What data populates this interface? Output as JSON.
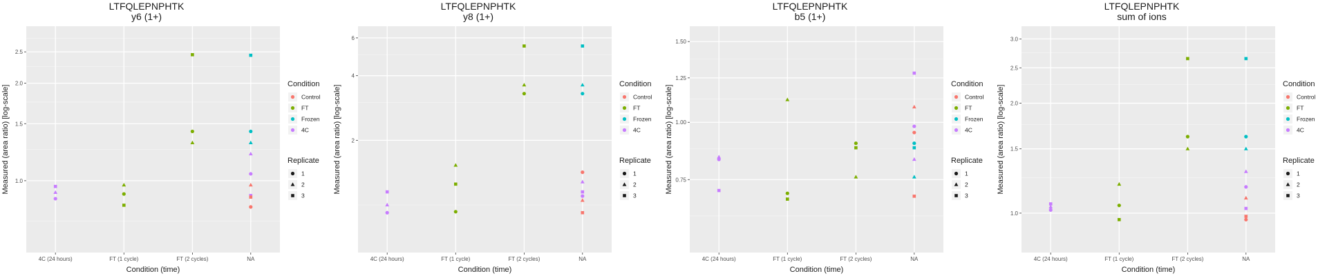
{
  "legend": {
    "condition_title": "Condition",
    "condition_entries": [
      {
        "label": "Control",
        "color": "#F8766D"
      },
      {
        "label": "FT",
        "color": "#7CAE00"
      },
      {
        "label": "Frozen",
        "color": "#00BFC4"
      },
      {
        "label": "4C",
        "color": "#C77CFF"
      }
    ],
    "replicate_title": "Replicate",
    "replicate_entries": [
      {
        "label": "1",
        "shape": "circle"
      },
      {
        "label": "2",
        "shape": "triangle"
      },
      {
        "label": "3",
        "shape": "square"
      }
    ]
  },
  "chart_data": [
    {
      "type": "scatter",
      "title": "LTFQLEPNPHTK",
      "subtitle": "y6 (1+)",
      "xlabel": "Condition (time)",
      "ylabel": "Measured (area ratio) [log-scale]",
      "y_scale": "log",
      "ylim": [
        0.6,
        3.0
      ],
      "grid": true,
      "legend_position": "right",
      "categories": [
        "4C (24 hours)",
        "FT (1 cycle)",
        "FT (2 cycles)",
        "NA"
      ],
      "y_ticks": [
        1.0,
        1.5,
        2.0,
        2.5
      ],
      "y_tick_labels": [
        "1.0",
        "1.5",
        "2.0",
        "2.5"
      ],
      "points": [
        {
          "x": "4C (24 hours)",
          "y": 0.96,
          "condition": "4C",
          "replicate": "3"
        },
        {
          "x": "4C (24 hours)",
          "y": 0.92,
          "condition": "4C",
          "replicate": "2"
        },
        {
          "x": "4C (24 hours)",
          "y": 0.88,
          "condition": "4C",
          "replicate": "1"
        },
        {
          "x": "FT (1 cycle)",
          "y": 0.97,
          "condition": "FT",
          "replicate": "2"
        },
        {
          "x": "FT (1 cycle)",
          "y": 0.91,
          "condition": "FT",
          "replicate": "1"
        },
        {
          "x": "FT (1 cycle)",
          "y": 0.84,
          "condition": "FT",
          "replicate": "3"
        },
        {
          "x": "FT (2 cycles)",
          "y": 2.45,
          "condition": "FT",
          "replicate": "3"
        },
        {
          "x": "FT (2 cycles)",
          "y": 1.42,
          "condition": "FT",
          "replicate": "1"
        },
        {
          "x": "FT (2 cycles)",
          "y": 1.31,
          "condition": "FT",
          "replicate": "2"
        },
        {
          "x": "NA",
          "y": 2.44,
          "condition": "Frozen",
          "replicate": "3"
        },
        {
          "x": "NA",
          "y": 1.42,
          "condition": "Frozen",
          "replicate": "1"
        },
        {
          "x": "NA",
          "y": 1.31,
          "condition": "Frozen",
          "replicate": "2"
        },
        {
          "x": "NA",
          "y": 1.21,
          "condition": "4C",
          "replicate": "2"
        },
        {
          "x": "NA",
          "y": 1.05,
          "condition": "4C",
          "replicate": "1"
        },
        {
          "x": "NA",
          "y": 0.97,
          "condition": "Control",
          "replicate": "2"
        },
        {
          "x": "NA",
          "y": 0.9,
          "condition": "4C",
          "replicate": "3"
        },
        {
          "x": "NA",
          "y": 0.89,
          "condition": "Control",
          "replicate": "3"
        },
        {
          "x": "NA",
          "y": 0.83,
          "condition": "Control",
          "replicate": "1"
        }
      ]
    },
    {
      "type": "scatter",
      "title": "LTFQLEPNPHTK",
      "subtitle": "y8 (1+)",
      "xlabel": "Condition (time)",
      "ylabel": "Measured (area ratio) [log-scale]",
      "y_scale": "log",
      "ylim": [
        0.6,
        6.8
      ],
      "grid": true,
      "legend_position": "right",
      "categories": [
        "4C (24 hours)",
        "FT (1 cycle)",
        "FT (2 cycles)",
        "NA"
      ],
      "y_ticks": [
        2,
        4,
        6
      ],
      "y_tick_labels": [
        "2",
        "4",
        "6"
      ],
      "points": [
        {
          "x": "4C (24 hours)",
          "y": 1.15,
          "condition": "4C",
          "replicate": "3"
        },
        {
          "x": "4C (24 hours)",
          "y": 1.0,
          "condition": "4C",
          "replicate": "2"
        },
        {
          "x": "4C (24 hours)",
          "y": 0.92,
          "condition": "4C",
          "replicate": "1"
        },
        {
          "x": "FT (1 cycle)",
          "y": 1.53,
          "condition": "FT",
          "replicate": "2"
        },
        {
          "x": "FT (1 cycle)",
          "y": 1.25,
          "condition": "FT",
          "replicate": "3"
        },
        {
          "x": "FT (1 cycle)",
          "y": 0.93,
          "condition": "FT",
          "replicate": "1"
        },
        {
          "x": "FT (2 cycles)",
          "y": 5.5,
          "condition": "FT",
          "replicate": "3"
        },
        {
          "x": "FT (2 cycles)",
          "y": 3.62,
          "condition": "FT",
          "replicate": "2"
        },
        {
          "x": "FT (2 cycles)",
          "y": 3.3,
          "condition": "FT",
          "replicate": "1"
        },
        {
          "x": "NA",
          "y": 5.5,
          "condition": "Frozen",
          "replicate": "3"
        },
        {
          "x": "NA",
          "y": 3.62,
          "condition": "Frozen",
          "replicate": "2"
        },
        {
          "x": "NA",
          "y": 3.3,
          "condition": "Frozen",
          "replicate": "1"
        },
        {
          "x": "NA",
          "y": 1.42,
          "condition": "Control",
          "replicate": "1"
        },
        {
          "x": "NA",
          "y": 1.28,
          "condition": "4C",
          "replicate": "2"
        },
        {
          "x": "NA",
          "y": 1.15,
          "condition": "4C",
          "replicate": "3"
        },
        {
          "x": "NA",
          "y": 1.1,
          "condition": "4C",
          "replicate": "1"
        },
        {
          "x": "NA",
          "y": 1.05,
          "condition": "Control",
          "replicate": "2"
        },
        {
          "x": "NA",
          "y": 0.92,
          "condition": "Control",
          "replicate": "3"
        }
      ]
    },
    {
      "type": "scatter",
      "title": "LTFQLEPNPHTK",
      "subtitle": "b5 (1+)",
      "xlabel": "Condition (time)",
      "ylabel": "Measured (area ratio) [log-scale]",
      "y_scale": "log",
      "ylim": [
        0.52,
        1.62
      ],
      "grid": true,
      "legend_position": "right",
      "categories": [
        "4C (24 hours)",
        "FT (1 cycle)",
        "FT (2 cycles)",
        "NA"
      ],
      "y_ticks": [
        0.75,
        1.0,
        1.25,
        1.5
      ],
      "y_tick_labels": [
        "0.75",
        "1.00",
        "1.25",
        "1.50"
      ],
      "points": [
        {
          "x": "4C (24 hours)",
          "y": 0.84,
          "condition": "4C",
          "replicate": "2"
        },
        {
          "x": "4C (24 hours)",
          "y": 0.83,
          "condition": "4C",
          "replicate": "1"
        },
        {
          "x": "4C (24 hours)",
          "y": 0.71,
          "condition": "4C",
          "replicate": "3"
        },
        {
          "x": "FT (1 cycle)",
          "y": 1.12,
          "condition": "FT",
          "replicate": "2"
        },
        {
          "x": "FT (1 cycle)",
          "y": 0.7,
          "condition": "FT",
          "replicate": "1"
        },
        {
          "x": "FT (1 cycle)",
          "y": 0.68,
          "condition": "FT",
          "replicate": "3"
        },
        {
          "x": "FT (2 cycles)",
          "y": 0.9,
          "condition": "FT",
          "replicate": "1"
        },
        {
          "x": "FT (2 cycles)",
          "y": 0.88,
          "condition": "FT",
          "replicate": "3"
        },
        {
          "x": "FT (2 cycles)",
          "y": 0.76,
          "condition": "FT",
          "replicate": "2"
        },
        {
          "x": "NA",
          "y": 1.28,
          "condition": "4C",
          "replicate": "3"
        },
        {
          "x": "NA",
          "y": 1.08,
          "condition": "Control",
          "replicate": "2"
        },
        {
          "x": "NA",
          "y": 0.98,
          "condition": "4C",
          "replicate": "1"
        },
        {
          "x": "NA",
          "y": 0.95,
          "condition": "Control",
          "replicate": "1"
        },
        {
          "x": "NA",
          "y": 0.9,
          "condition": "Frozen",
          "replicate": "1"
        },
        {
          "x": "NA",
          "y": 0.88,
          "condition": "Frozen",
          "replicate": "3"
        },
        {
          "x": "NA",
          "y": 0.83,
          "condition": "4C",
          "replicate": "2"
        },
        {
          "x": "NA",
          "y": 0.76,
          "condition": "Frozen",
          "replicate": "2"
        },
        {
          "x": "NA",
          "y": 0.69,
          "condition": "Control",
          "replicate": "3"
        }
      ]
    },
    {
      "type": "scatter",
      "title": "LTFQLEPNPHTK",
      "subtitle": "sum of ions",
      "xlabel": "Condition (time)",
      "ylabel": "Measured (area ratio) [log-scale]",
      "y_scale": "log",
      "ylim": [
        0.78,
        3.25
      ],
      "grid": true,
      "legend_position": "right",
      "categories": [
        "4C (24 hours)",
        "FT (1 cycle)",
        "FT (2 cycles)",
        "NA"
      ],
      "y_ticks": [
        1.0,
        1.5,
        2.0,
        2.5,
        3.0
      ],
      "y_tick_labels": [
        "1.0",
        "1.5",
        "2.0",
        "2.5",
        "3.0"
      ],
      "points": [
        {
          "x": "4C (24 hours)",
          "y": 1.06,
          "condition": "4C",
          "replicate": "3"
        },
        {
          "x": "4C (24 hours)",
          "y": 1.04,
          "condition": "4C",
          "replicate": "2"
        },
        {
          "x": "4C (24 hours)",
          "y": 1.02,
          "condition": "4C",
          "replicate": "1"
        },
        {
          "x": "FT (1 cycle)",
          "y": 1.2,
          "condition": "FT",
          "replicate": "2"
        },
        {
          "x": "FT (1 cycle)",
          "y": 1.05,
          "condition": "FT",
          "replicate": "1"
        },
        {
          "x": "FT (1 cycle)",
          "y": 0.96,
          "condition": "FT",
          "replicate": "3"
        },
        {
          "x": "FT (2 cycles)",
          "y": 2.65,
          "condition": "FT",
          "replicate": "3"
        },
        {
          "x": "FT (2 cycles)",
          "y": 1.62,
          "condition": "FT",
          "replicate": "1"
        },
        {
          "x": "FT (2 cycles)",
          "y": 1.5,
          "condition": "FT",
          "replicate": "2"
        },
        {
          "x": "NA",
          "y": 2.65,
          "condition": "Frozen",
          "replicate": "3"
        },
        {
          "x": "NA",
          "y": 1.62,
          "condition": "Frozen",
          "replicate": "1"
        },
        {
          "x": "NA",
          "y": 1.5,
          "condition": "Frozen",
          "replicate": "2"
        },
        {
          "x": "NA",
          "y": 1.3,
          "condition": "4C",
          "replicate": "2"
        },
        {
          "x": "NA",
          "y": 1.18,
          "condition": "4C",
          "replicate": "1"
        },
        {
          "x": "NA",
          "y": 1.1,
          "condition": "Control",
          "replicate": "2"
        },
        {
          "x": "NA",
          "y": 1.03,
          "condition": "4C",
          "replicate": "3"
        },
        {
          "x": "NA",
          "y": 0.98,
          "condition": "Control",
          "replicate": "3"
        },
        {
          "x": "NA",
          "y": 0.96,
          "condition": "Control",
          "replicate": "1"
        }
      ]
    }
  ]
}
